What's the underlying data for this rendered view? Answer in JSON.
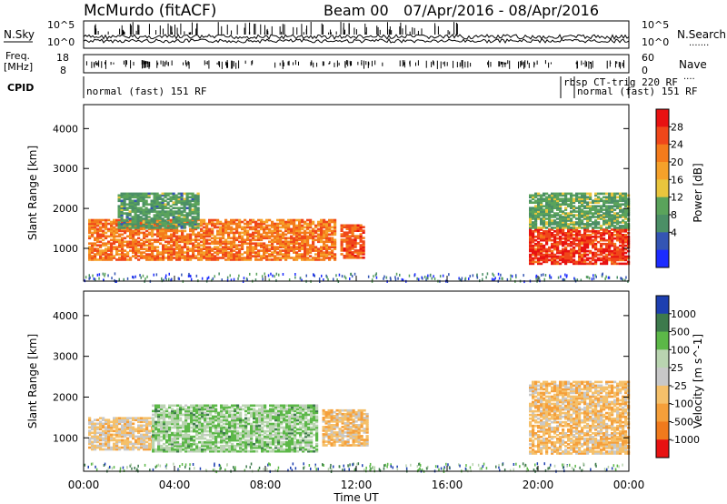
{
  "header": {
    "station": "McMurdo (fitACF)",
    "beam": "Beam 00",
    "dates": "07/Apr/2016 - 08/Apr/2016"
  },
  "strips": {
    "nsky_label": "N.Sky",
    "nsky_tick_top": "10^5",
    "nsky_tick_bottom": "10^0",
    "nsearch_label": "N.Search",
    "nsearch_dots": ".......",
    "nsearch_tick_top": "10^5",
    "nsearch_tick_bottom": "10^0",
    "freq_label": "Freq.",
    "freq_unit": "[MHz]",
    "freq_tick_top": "18",
    "freq_tick_bottom": "8",
    "nave_label": "Nave",
    "nave_dots": "....",
    "nave_tick_top": "60",
    "nave_tick_bottom": "0",
    "cpid_label": "CPID",
    "cpid_events": [
      {
        "start_h": 0.0,
        "label": "normal (fast) 151 RF",
        "row": 1
      },
      {
        "start_h": 21.0,
        "label": "rbsp CT-trig 220 RF",
        "row": 0
      },
      {
        "start_h": 21.6,
        "label": "normal (fast) 151 RF",
        "row": 1
      }
    ]
  },
  "xaxis": {
    "ticks": [
      "00:00",
      "04:00",
      "08:00",
      "12:00",
      "16:00",
      "20:00",
      "00:00"
    ],
    "label": "Time UT",
    "range_hours": [
      0,
      24
    ]
  },
  "chart_data": [
    {
      "type": "heatmap",
      "panel": "power",
      "xlabel": "Time UT",
      "ylabel": "Slant Range [km]",
      "ylim": [
        180,
        4600
      ],
      "yticks": [
        "1000",
        "2000",
        "3000",
        "4000"
      ],
      "colorbar_label": "Power [dB]",
      "colorbar_ticks": [
        "4",
        "8",
        "12",
        "16",
        "20",
        "24",
        "28"
      ],
      "colorbar_range": [
        0,
        30
      ],
      "colors": [
        "#1c2bff",
        "#3455b4",
        "#4b8f66",
        "#5aa35b",
        "#e9c53d",
        "#f5a12a",
        "#f47b1b",
        "#f0471a",
        "#e81212"
      ],
      "regions": [
        {
          "t0": 0.2,
          "t1": 11.0,
          "r0": 700,
          "r1": 1700,
          "level": 22
        },
        {
          "t0": 11.3,
          "t1": 12.3,
          "r0": 750,
          "r1": 1600,
          "level": 24
        },
        {
          "t0": 1.5,
          "t1": 5.0,
          "r0": 1500,
          "r1": 2400,
          "level": 10
        },
        {
          "t0": 19.6,
          "t1": 24.0,
          "r0": 600,
          "r1": 1500,
          "level": 26
        },
        {
          "t0": 19.6,
          "t1": 24.0,
          "r0": 1500,
          "r1": 2400,
          "level": 11
        }
      ]
    },
    {
      "type": "heatmap",
      "panel": "velocity",
      "xlabel": "Time UT",
      "ylabel": "Slant Range [km]",
      "ylim": [
        180,
        4600
      ],
      "yticks": [
        "1000",
        "2000",
        "3000",
        "4000"
      ],
      "colorbar_label": "Velocity [m s^-1]",
      "colorbar_ticks": [
        "1000",
        "500",
        "100",
        "25",
        "-25",
        "-100",
        "-500",
        "-1000"
      ],
      "colorbar_range": [
        -1200,
        1200
      ],
      "colors": [
        "#1d3fb0",
        "#3d7a4c",
        "#5cb848",
        "#b9d4b0",
        "#c8c8c8",
        "#f5c06a",
        "#f59f3a",
        "#f07a1c",
        "#e81212"
      ],
      "regions": [
        {
          "t0": 0.2,
          "t1": 3.0,
          "r0": 700,
          "r1": 1500,
          "level": -200
        },
        {
          "t0": 3.0,
          "t1": 10.2,
          "r0": 650,
          "r1": 1800,
          "level": 400
        },
        {
          "t0": 10.5,
          "t1": 12.5,
          "r0": 800,
          "r1": 1700,
          "level": -300
        },
        {
          "t0": 19.6,
          "t1": 24.0,
          "r0": 600,
          "r1": 2400,
          "level": -300
        }
      ]
    }
  ]
}
